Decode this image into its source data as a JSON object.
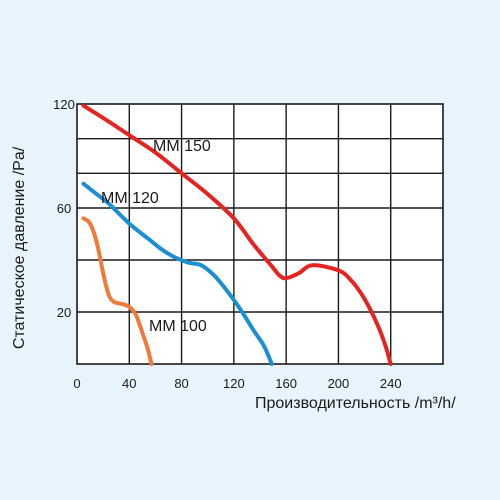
{
  "chart_data": {
    "type": "line",
    "xlabel": "Производительность  /m³/h/",
    "ylabel": "Статическое давление /Pa/",
    "xlim": [
      0,
      280
    ],
    "ylim": [
      0,
      120
    ],
    "x_ticks": [
      0,
      40,
      80,
      120,
      160,
      200,
      240
    ],
    "x_tick_labels": [
      "0",
      "40",
      "80",
      "120",
      "160",
      "200",
      "240"
    ],
    "y_ticks": [
      20,
      60,
      120
    ],
    "y_tick_labels": [
      "20",
      "60",
      "120"
    ],
    "grid": true,
    "series": [
      {
        "name": "MM 150",
        "color": "#e52421",
        "points": [
          [
            5,
            119
          ],
          [
            20,
            112
          ],
          [
            40,
            102
          ],
          [
            60,
            92
          ],
          [
            80,
            80
          ],
          [
            100,
            68
          ],
          [
            120,
            56
          ],
          [
            135,
            46
          ],
          [
            145,
            40
          ],
          [
            150,
            37
          ],
          [
            155,
            34
          ],
          [
            160,
            33
          ],
          [
            170,
            35
          ],
          [
            180,
            38
          ],
          [
            200,
            36
          ],
          [
            210,
            32
          ],
          [
            220,
            25
          ],
          [
            230,
            15
          ],
          [
            236,
            7
          ],
          [
            240,
            0
          ]
        ]
      },
      {
        "name": "MM 120",
        "color": "#1b8fd4",
        "points": [
          [
            5,
            74
          ],
          [
            15,
            68
          ],
          [
            25,
            62
          ],
          [
            40,
            54
          ],
          [
            55,
            48
          ],
          [
            65,
            44
          ],
          [
            75,
            41
          ],
          [
            85,
            39
          ],
          [
            95,
            38
          ],
          [
            105,
            34
          ],
          [
            115,
            28
          ],
          [
            125,
            21
          ],
          [
            135,
            13
          ],
          [
            143,
            7
          ],
          [
            149,
            0
          ]
        ]
      },
      {
        "name": "MM 100",
        "color": "#f07a39",
        "points": [
          [
            5,
            56
          ],
          [
            10,
            54
          ],
          [
            15,
            47
          ],
          [
            20,
            35
          ],
          [
            24,
            27
          ],
          [
            28,
            24
          ],
          [
            35,
            23
          ],
          [
            40,
            22
          ],
          [
            45,
            19
          ],
          [
            50,
            12
          ],
          [
            54,
            6
          ],
          [
            57,
            0
          ]
        ]
      }
    ]
  }
}
